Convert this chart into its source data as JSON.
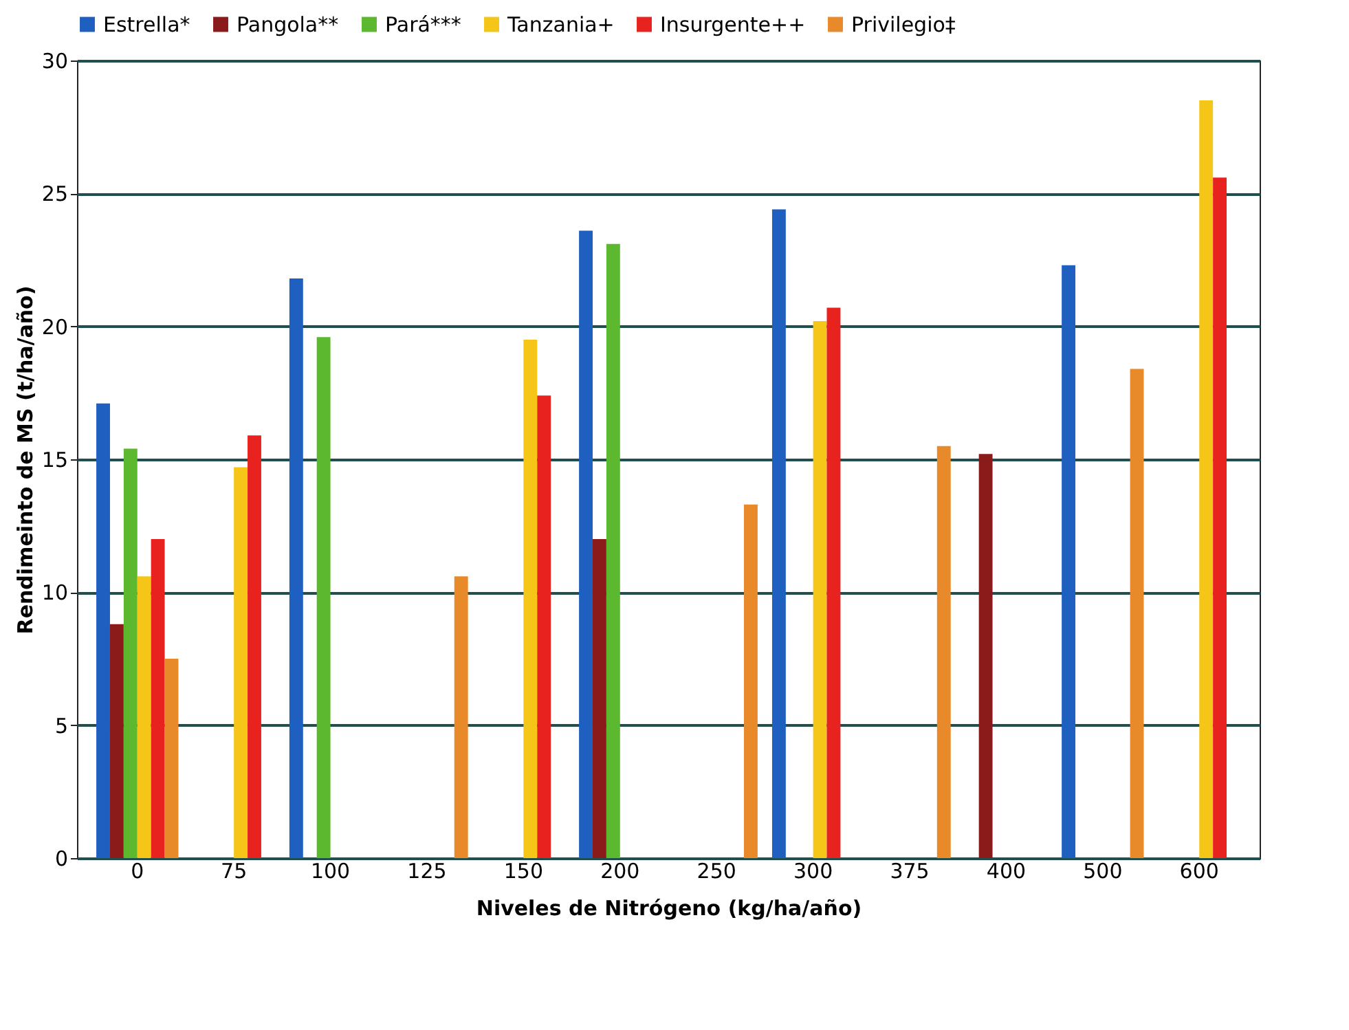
{
  "chart_data": {
    "type": "bar",
    "xlabel": "Niveles de Nitrógeno (kg/ha/año)",
    "ylabel": "Rendimeinto de MS  (t/ha/año)",
    "categories": [
      "0",
      "75",
      "100",
      "125",
      "150",
      "200",
      "250",
      "300",
      "375",
      "400",
      "500",
      "600"
    ],
    "series": [
      {
        "name": "Estrella*",
        "color": "#1f5fbf",
        "values": [
          17.1,
          null,
          21.8,
          null,
          null,
          23.6,
          null,
          24.4,
          null,
          null,
          22.3,
          null
        ]
      },
      {
        "name": "Pangola**",
        "color": "#8b1a1a",
        "values": [
          8.8,
          null,
          null,
          null,
          null,
          12,
          null,
          null,
          null,
          15.2,
          null,
          null
        ]
      },
      {
        "name": "Pará***",
        "color": "#5cb82e",
        "values": [
          15.4,
          null,
          19.6,
          null,
          null,
          23.1,
          null,
          null,
          null,
          null,
          null,
          null
        ]
      },
      {
        "name": "Tanzania+",
        "color": "#f5c518",
        "values": [
          10.6,
          14.7,
          null,
          null,
          19.5,
          null,
          null,
          20.2,
          null,
          null,
          null,
          28.5
        ]
      },
      {
        "name": "Insurgente++",
        "color": "#e8231f",
        "values": [
          12,
          15.9,
          null,
          null,
          17.4,
          null,
          null,
          20.7,
          null,
          null,
          null,
          25.6
        ]
      },
      {
        "name": "Privilegio‡",
        "color": "#e8892a",
        "values": [
          7.5,
          null,
          null,
          10.6,
          null,
          null,
          13.3,
          null,
          15.5,
          null,
          18.4,
          null
        ]
      }
    ],
    "ylim": [
      0,
      30
    ],
    "yticks": [
      0,
      5,
      10,
      15,
      20,
      25,
      30
    ],
    "grid": "y",
    "legend": "top"
  }
}
